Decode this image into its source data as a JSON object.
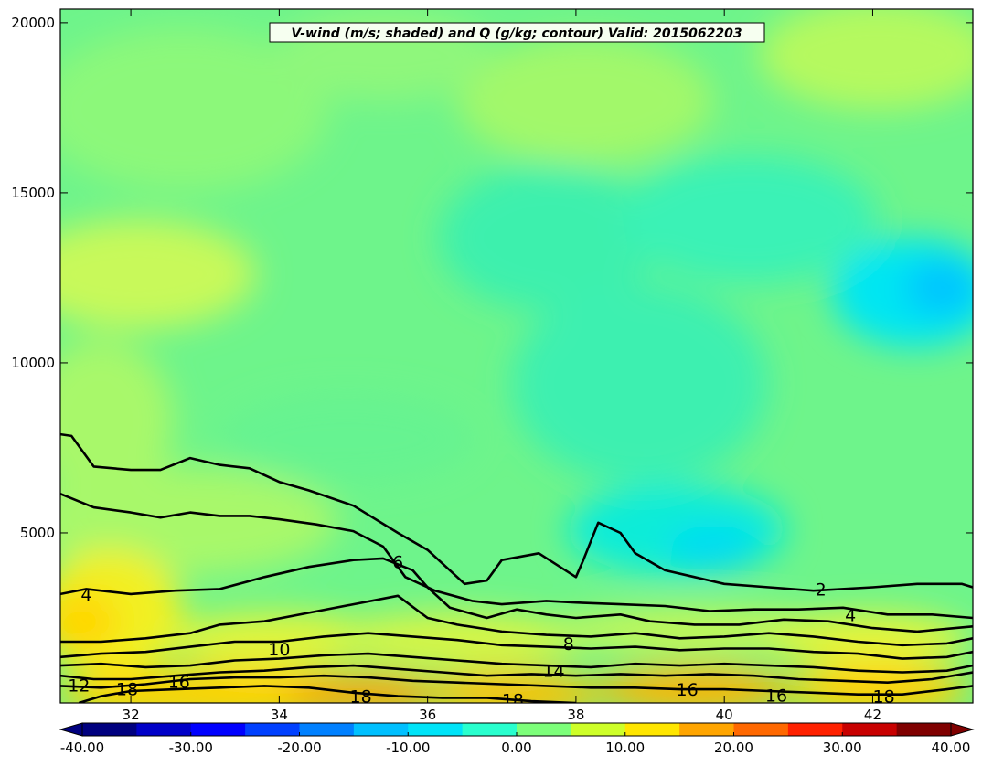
{
  "chart_data": {
    "type": "heatmap",
    "title": "V-wind (m/s; shaded) and Q (g/kg; contour) Valid: 2015062203",
    "xlabel": "",
    "ylabel": "",
    "xlim": [
      31.05,
      43.35
    ],
    "ylim": [
      0,
      20400
    ],
    "x_ticks": [
      32,
      34,
      36,
      38,
      40,
      42
    ],
    "y_ticks": [
      5000,
      10000,
      15000,
      20000
    ],
    "x_tick_labels": [
      "32",
      "34",
      "36",
      "38",
      "40",
      "42"
    ],
    "y_tick_labels": [
      "5000",
      "10000",
      "15000",
      "20000"
    ],
    "grid": false,
    "colorbar": {
      "orientation": "horizontal",
      "placement": "bottom",
      "range": [
        -40,
        40
      ],
      "ticks": [
        -40,
        -30,
        -20,
        -10,
        0,
        10,
        20,
        30,
        40
      ],
      "tick_labels": [
        "-40.00",
        "-30.00",
        "-20.00",
        "-10.00",
        "0.00",
        "10.00",
        "20.00",
        "30.00",
        "40.00"
      ],
      "colors": [
        "#00007f",
        "#0000c8",
        "#0000ff",
        "#0040ff",
        "#0080ff",
        "#00c0ff",
        "#00e4f8",
        "#29ffce",
        "#7dff7a",
        "#ceff29",
        "#ffe600",
        "#ffa500",
        "#ff6800",
        "#ff2100",
        "#c80000",
        "#7f0000"
      ]
    },
    "shading_description": "Mostly 0 to 5 m/s; near -10 m/s at 40-43 deg, 4000-13000 m; 10-20 m/s near surface below 3000 m",
    "contours": [
      {
        "level": 2,
        "label_positions": [
          [
            41.3,
            3350
          ]
        ],
        "points": [
          [
            31.05,
            7900
          ],
          [
            31.2,
            7850
          ],
          [
            31.5,
            6950
          ],
          [
            32.0,
            6850
          ],
          [
            32.4,
            6850
          ],
          [
            32.8,
            7200
          ],
          [
            33.2,
            7000
          ],
          [
            33.6,
            6900
          ],
          [
            34.0,
            6500
          ],
          [
            34.4,
            6250
          ],
          [
            35.0,
            5800
          ],
          [
            35.6,
            5000
          ],
          [
            36.0,
            4500
          ],
          [
            36.3,
            3900
          ],
          [
            36.5,
            3500
          ],
          [
            36.8,
            3600
          ],
          [
            37.0,
            4200
          ],
          [
            37.5,
            4400
          ],
          [
            38.0,
            3700
          ],
          [
            38.1,
            4200
          ],
          [
            38.3,
            5300
          ],
          [
            38.6,
            5000
          ],
          [
            38.8,
            4400
          ],
          [
            39.2,
            3900
          ],
          [
            39.6,
            3700
          ],
          [
            40.0,
            3500
          ],
          [
            40.6,
            3400
          ],
          [
            41.2,
            3300
          ],
          [
            42.0,
            3400
          ],
          [
            42.6,
            3500
          ],
          [
            43.2,
            3500
          ],
          [
            43.35,
            3400
          ]
        ]
      },
      {
        "level": 4,
        "label_positions": [
          [
            31.4,
            3200
          ],
          [
            41.7,
            2600
          ]
        ],
        "points": [
          [
            31.05,
            6150
          ],
          [
            31.5,
            5750
          ],
          [
            32.0,
            5600
          ],
          [
            32.4,
            5450
          ],
          [
            32.8,
            5600
          ],
          [
            33.2,
            5500
          ],
          [
            33.6,
            5500
          ],
          [
            34.0,
            5400
          ],
          [
            34.5,
            5250
          ],
          [
            35.0,
            5050
          ],
          [
            35.4,
            4600
          ],
          [
            35.7,
            3700
          ],
          [
            36.1,
            3300
          ],
          [
            36.6,
            3000
          ],
          [
            37.0,
            2900
          ],
          [
            37.6,
            3000
          ],
          [
            38.0,
            2950
          ],
          [
            38.6,
            2900
          ],
          [
            39.2,
            2850
          ],
          [
            39.8,
            2700
          ],
          [
            40.4,
            2750
          ],
          [
            41.0,
            2750
          ],
          [
            41.6,
            2800
          ],
          [
            42.2,
            2600
          ],
          [
            42.8,
            2600
          ],
          [
            43.35,
            2500
          ]
        ]
      },
      {
        "level": 6,
        "label_positions": [
          [
            35.6,
            4150
          ]
        ],
        "points": [
          [
            31.05,
            3200
          ],
          [
            31.4,
            3350
          ],
          [
            32.0,
            3200
          ],
          [
            32.6,
            3300
          ],
          [
            33.2,
            3350
          ],
          [
            33.8,
            3700
          ],
          [
            34.4,
            4000
          ],
          [
            35.0,
            4200
          ],
          [
            35.4,
            4250
          ],
          [
            35.8,
            3900
          ],
          [
            36.0,
            3400
          ],
          [
            36.3,
            2800
          ],
          [
            36.8,
            2500
          ],
          [
            37.2,
            2750
          ],
          [
            37.6,
            2600
          ],
          [
            38.0,
            2500
          ],
          [
            38.6,
            2600
          ],
          [
            39.0,
            2400
          ],
          [
            39.6,
            2300
          ],
          [
            40.2,
            2300
          ],
          [
            40.8,
            2450
          ],
          [
            41.4,
            2400
          ],
          [
            42.0,
            2200
          ],
          [
            42.6,
            2100
          ],
          [
            43.35,
            2250
          ]
        ]
      },
      {
        "level": 8,
        "label_positions": [
          [
            37.9,
            1750
          ]
        ],
        "points": [
          [
            31.05,
            1800
          ],
          [
            31.6,
            1800
          ],
          [
            32.2,
            1900
          ],
          [
            32.8,
            2050
          ],
          [
            33.2,
            2300
          ],
          [
            33.8,
            2400
          ],
          [
            34.4,
            2650
          ],
          [
            35.0,
            2900
          ],
          [
            35.6,
            3150
          ],
          [
            36.0,
            2500
          ],
          [
            36.4,
            2300
          ],
          [
            37.0,
            2100
          ],
          [
            37.6,
            2000
          ],
          [
            38.2,
            1950
          ],
          [
            38.8,
            2050
          ],
          [
            39.4,
            1900
          ],
          [
            40.0,
            1950
          ],
          [
            40.6,
            2050
          ],
          [
            41.2,
            1950
          ],
          [
            41.8,
            1800
          ],
          [
            42.4,
            1700
          ],
          [
            43.0,
            1750
          ],
          [
            43.35,
            1900
          ]
        ]
      },
      {
        "level": 10,
        "label_positions": [
          [
            34.0,
            1580
          ]
        ],
        "points": [
          [
            31.05,
            1350
          ],
          [
            31.6,
            1450
          ],
          [
            32.2,
            1500
          ],
          [
            32.8,
            1650
          ],
          [
            33.4,
            1800
          ],
          [
            34.0,
            1800
          ],
          [
            34.6,
            1950
          ],
          [
            35.2,
            2050
          ],
          [
            35.8,
            1950
          ],
          [
            36.4,
            1850
          ],
          [
            37.0,
            1700
          ],
          [
            37.6,
            1650
          ],
          [
            38.2,
            1600
          ],
          [
            38.8,
            1650
          ],
          [
            39.4,
            1550
          ],
          [
            40.0,
            1600
          ],
          [
            40.6,
            1600
          ],
          [
            41.2,
            1500
          ],
          [
            41.8,
            1450
          ],
          [
            42.4,
            1300
          ],
          [
            43.0,
            1350
          ],
          [
            43.35,
            1500
          ]
        ]
      },
      {
        "level": 14,
        "label_positions": [
          [
            37.7,
            950
          ]
        ],
        "points": [
          [
            31.05,
            1100
          ],
          [
            31.6,
            1150
          ],
          [
            32.2,
            1050
          ],
          [
            32.8,
            1100
          ],
          [
            33.4,
            1250
          ],
          [
            34.0,
            1300
          ],
          [
            34.6,
            1400
          ],
          [
            35.2,
            1450
          ],
          [
            35.8,
            1350
          ],
          [
            36.4,
            1250
          ],
          [
            37.0,
            1150
          ],
          [
            37.6,
            1100
          ],
          [
            38.2,
            1050
          ],
          [
            38.8,
            1150
          ],
          [
            39.4,
            1100
          ],
          [
            40.0,
            1150
          ],
          [
            40.6,
            1100
          ],
          [
            41.2,
            1050
          ],
          [
            41.8,
            950
          ],
          [
            42.4,
            900
          ],
          [
            43.0,
            950
          ],
          [
            43.35,
            1100
          ]
        ]
      },
      {
        "level": 12,
        "label_positions": [
          [
            31.3,
            530
          ]
        ],
        "points": [
          [
            31.05,
            800
          ],
          [
            31.5,
            700
          ],
          [
            32.0,
            700
          ],
          [
            32.6,
            800
          ],
          [
            33.2,
            900
          ],
          [
            33.8,
            950
          ],
          [
            34.4,
            1050
          ],
          [
            35.0,
            1100
          ],
          [
            35.6,
            1000
          ],
          [
            36.2,
            900
          ],
          [
            36.8,
            800
          ],
          [
            37.4,
            850
          ],
          [
            38.0,
            800
          ],
          [
            38.6,
            850
          ],
          [
            39.2,
            800
          ],
          [
            39.8,
            850
          ],
          [
            40.4,
            800
          ],
          [
            41.0,
            700
          ],
          [
            41.6,
            650
          ],
          [
            42.2,
            600
          ],
          [
            42.8,
            700
          ],
          [
            43.35,
            900
          ]
        ]
      },
      {
        "level": 16,
        "label_positions": [
          [
            32.65,
            630
          ],
          [
            39.5,
            400
          ],
          [
            40.7,
            230
          ]
        ],
        "points": [
          [
            31.05,
            500
          ],
          [
            31.6,
            450
          ],
          [
            32.2,
            550
          ],
          [
            32.8,
            700
          ],
          [
            33.4,
            750
          ],
          [
            34.0,
            750
          ],
          [
            34.6,
            800
          ],
          [
            35.2,
            750
          ],
          [
            35.8,
            650
          ],
          [
            36.4,
            600
          ],
          [
            37.0,
            550
          ],
          [
            37.6,
            500
          ],
          [
            38.2,
            450
          ],
          [
            38.8,
            450
          ],
          [
            39.4,
            400
          ],
          [
            40.0,
            400
          ],
          [
            40.6,
            350
          ],
          [
            41.2,
            300
          ],
          [
            41.8,
            250
          ],
          [
            42.4,
            250
          ],
          [
            43.0,
            400
          ],
          [
            43.35,
            500
          ]
        ]
      },
      {
        "level": 18,
        "label_positions": [
          [
            31.95,
            420
          ],
          [
            35.1,
            200
          ],
          [
            37.15,
            100
          ],
          [
            42.15,
            200
          ]
        ],
        "points": [
          [
            31.3,
            0
          ],
          [
            31.6,
            200
          ],
          [
            32.0,
            350
          ],
          [
            32.6,
            400
          ],
          [
            33.2,
            450
          ],
          [
            33.8,
            500
          ],
          [
            34.4,
            450
          ],
          [
            35.0,
            300
          ],
          [
            35.6,
            200
          ],
          [
            36.2,
            150
          ],
          [
            36.8,
            150
          ],
          [
            37.4,
            50
          ],
          [
            38.0,
            0
          ]
        ]
      }
    ]
  }
}
